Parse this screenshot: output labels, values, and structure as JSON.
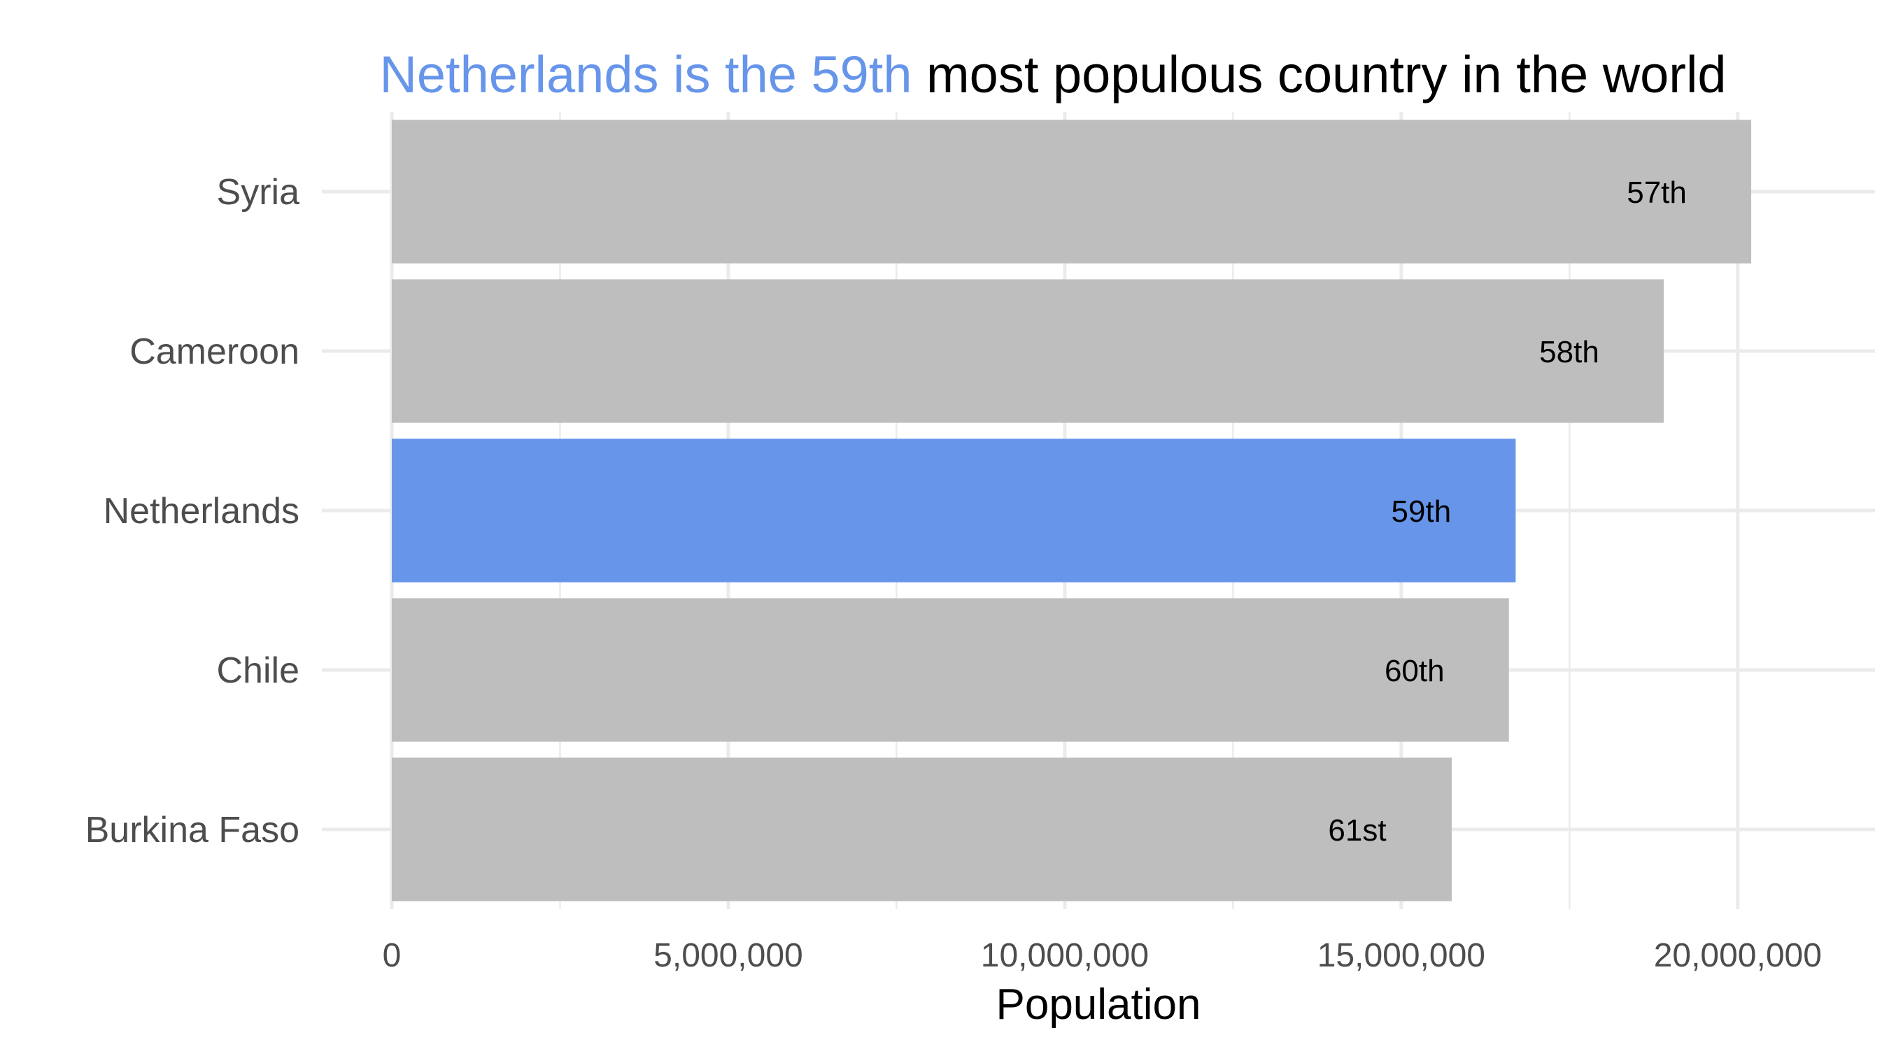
{
  "title": {
    "highlight": "Netherlands is the 59th",
    "rest": " most populous country in the world"
  },
  "colors": {
    "highlight": "#6795EA",
    "default_bar": "#BEBEBE",
    "title_rest": "#000000",
    "grid": "#EBEBEB"
  },
  "chart_data": {
    "type": "bar",
    "orientation": "horizontal",
    "categories": [
      "Syria",
      "Cameroon",
      "Netherlands",
      "Chile",
      "Burkina Faso"
    ],
    "values": [
      20200000,
      18900000,
      16700000,
      16600000,
      15750000
    ],
    "bar_labels": [
      "57th",
      "58th",
      "59th",
      "60th",
      "61st"
    ],
    "highlight_index": 2,
    "xlabel": "Population",
    "ylabel": "",
    "xlim": [
      0,
      21000000
    ],
    "xticks": [
      0,
      5000000,
      10000000,
      15000000,
      20000000
    ],
    "xtick_labels": [
      "0",
      "5,000,000",
      "10,000,000",
      "15,000,000",
      "20,000,000"
    ],
    "grid": true,
    "legend": "none"
  }
}
